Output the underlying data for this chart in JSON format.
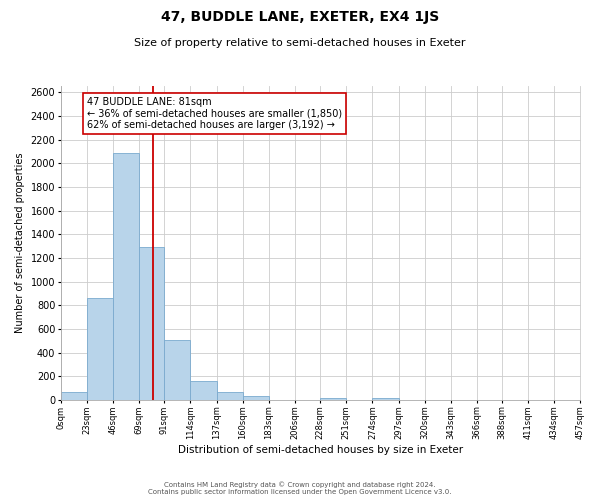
{
  "title": "47, BUDDLE LANE, EXETER, EX4 1JS",
  "subtitle": "Size of property relative to semi-detached houses in Exeter",
  "xlabel": "Distribution of semi-detached houses by size in Exeter",
  "ylabel": "Number of semi-detached properties",
  "footer_line1": "Contains HM Land Registry data © Crown copyright and database right 2024.",
  "footer_line2": "Contains public sector information licensed under the Open Government Licence v3.0.",
  "bin_labels": [
    "0sqm",
    "23sqm",
    "46sqm",
    "69sqm",
    "91sqm",
    "114sqm",
    "137sqm",
    "160sqm",
    "183sqm",
    "206sqm",
    "228sqm",
    "251sqm",
    "274sqm",
    "297sqm",
    "320sqm",
    "343sqm",
    "366sqm",
    "388sqm",
    "411sqm",
    "434sqm",
    "457sqm"
  ],
  "bin_edges": [
    0,
    23,
    46,
    69,
    91,
    114,
    137,
    160,
    183,
    206,
    228,
    251,
    274,
    297,
    320,
    343,
    366,
    388,
    411,
    434,
    457
  ],
  "bar_heights": [
    65,
    860,
    2090,
    1290,
    510,
    160,
    65,
    30,
    0,
    0,
    20,
    0,
    20,
    0,
    0,
    0,
    0,
    0,
    0,
    0
  ],
  "bar_color": "#b8d4ea",
  "bar_edge_color": "#7aaace",
  "property_value": 81,
  "property_line_color": "#cc0000",
  "annotation_title": "47 BUDDLE LANE: 81sqm",
  "annotation_line1": "← 36% of semi-detached houses are smaller (1,850)",
  "annotation_line2": "62% of semi-detached houses are larger (3,192) →",
  "annotation_box_color": "#ffffff",
  "annotation_box_edge_color": "#cc0000",
  "ylim": [
    0,
    2650
  ],
  "yticks": [
    0,
    200,
    400,
    600,
    800,
    1000,
    1200,
    1400,
    1600,
    1800,
    2000,
    2200,
    2400,
    2600
  ],
  "background_color": "#ffffff",
  "grid_color": "#cccccc",
  "title_fontsize": 10,
  "subtitle_fontsize": 8,
  "xlabel_fontsize": 7.5,
  "ylabel_fontsize": 7,
  "xtick_fontsize": 6,
  "ytick_fontsize": 7,
  "footer_fontsize": 5,
  "annotation_fontsize": 7
}
